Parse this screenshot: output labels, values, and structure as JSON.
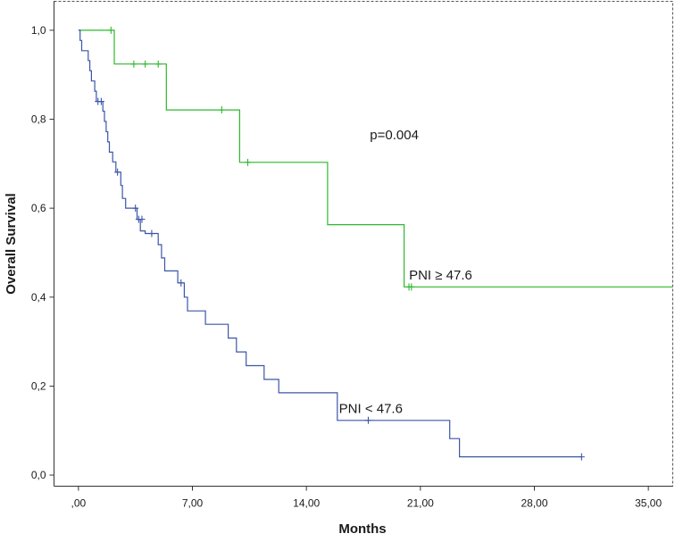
{
  "chart_data": {
    "type": "line",
    "subtype": "kaplan-meier step",
    "title": "",
    "xlabel": "Months",
    "ylabel": "Overall Survival",
    "xlim": [
      -1.5,
      36.5
    ],
    "ylim": [
      -0.025,
      1.065
    ],
    "x_ticks": [
      0,
      7,
      14,
      21,
      28,
      35
    ],
    "x_tick_labels": [
      ",00",
      "7,00",
      "14,00",
      "21,00",
      "28,00",
      "35,00"
    ],
    "y_ticks": [
      0,
      0.2,
      0.4,
      0.6,
      0.8,
      1.0
    ],
    "y_tick_labels": [
      "0,0",
      "0,2",
      "0,4",
      "0,6",
      "0,8",
      "1,0"
    ],
    "grid": false,
    "annotations": [
      {
        "text": "p=0.004",
        "x": 17.9,
        "y": 0.755
      },
      {
        "text": "PNI ≥ 47.6",
        "x": 20.3,
        "y": 0.44
      },
      {
        "text": "PNI < 47.6",
        "x": 16.0,
        "y": 0.14
      }
    ],
    "series": [
      {
        "name": "PNI ≥ 47.6",
        "color": "#2eb82e",
        "steps": [
          [
            0,
            1.0
          ],
          [
            2.2,
            0.924
          ],
          [
            5.4,
            0.821
          ],
          [
            9.9,
            0.703
          ],
          [
            15.3,
            0.563
          ],
          [
            20.0,
            0.423
          ],
          [
            36.5,
            0.423
          ]
        ],
        "censored": [
          [
            2.0,
            1.0
          ],
          [
            3.4,
            0.924
          ],
          [
            4.1,
            0.924
          ],
          [
            4.9,
            0.924
          ],
          [
            8.8,
            0.821
          ],
          [
            10.4,
            0.703
          ],
          [
            20.3,
            0.423
          ],
          [
            20.45,
            0.423
          ]
        ]
      },
      {
        "name": "PNI < 47.6",
        "color": "#3c56a8",
        "steps": [
          [
            0,
            1.0
          ],
          [
            0.1,
            0.977
          ],
          [
            0.2,
            0.954
          ],
          [
            0.6,
            0.932
          ],
          [
            0.7,
            0.909
          ],
          [
            0.8,
            0.886
          ],
          [
            1.0,
            0.863
          ],
          [
            1.1,
            0.84
          ],
          [
            1.5,
            0.818
          ],
          [
            1.6,
            0.795
          ],
          [
            1.7,
            0.772
          ],
          [
            1.8,
            0.749
          ],
          [
            1.9,
            0.726
          ],
          [
            2.1,
            0.704
          ],
          [
            2.3,
            0.681
          ],
          [
            2.6,
            0.651
          ],
          [
            2.7,
            0.622
          ],
          [
            2.9,
            0.6
          ],
          [
            3.6,
            0.575
          ],
          [
            3.8,
            0.549
          ],
          [
            4.1,
            0.543
          ],
          [
            4.9,
            0.518
          ],
          [
            5.1,
            0.488
          ],
          [
            5.3,
            0.459
          ],
          [
            6.1,
            0.432
          ],
          [
            6.5,
            0.4
          ],
          [
            6.7,
            0.369
          ],
          [
            7.8,
            0.339
          ],
          [
            9.2,
            0.308
          ],
          [
            9.7,
            0.277
          ],
          [
            10.3,
            0.246
          ],
          [
            11.4,
            0.215
          ],
          [
            12.3,
            0.185
          ],
          [
            15.9,
            0.123
          ],
          [
            22.8,
            0.082
          ],
          [
            23.4,
            0.041
          ],
          [
            30.9,
            0.041
          ]
        ],
        "censored": [
          [
            1.2,
            0.84
          ],
          [
            1.4,
            0.84
          ],
          [
            2.4,
            0.681
          ],
          [
            3.5,
            0.6
          ],
          [
            3.7,
            0.575
          ],
          [
            3.9,
            0.575
          ],
          [
            4.5,
            0.543
          ],
          [
            6.3,
            0.432
          ],
          [
            17.8,
            0.123
          ],
          [
            30.9,
            0.041
          ]
        ]
      }
    ]
  }
}
